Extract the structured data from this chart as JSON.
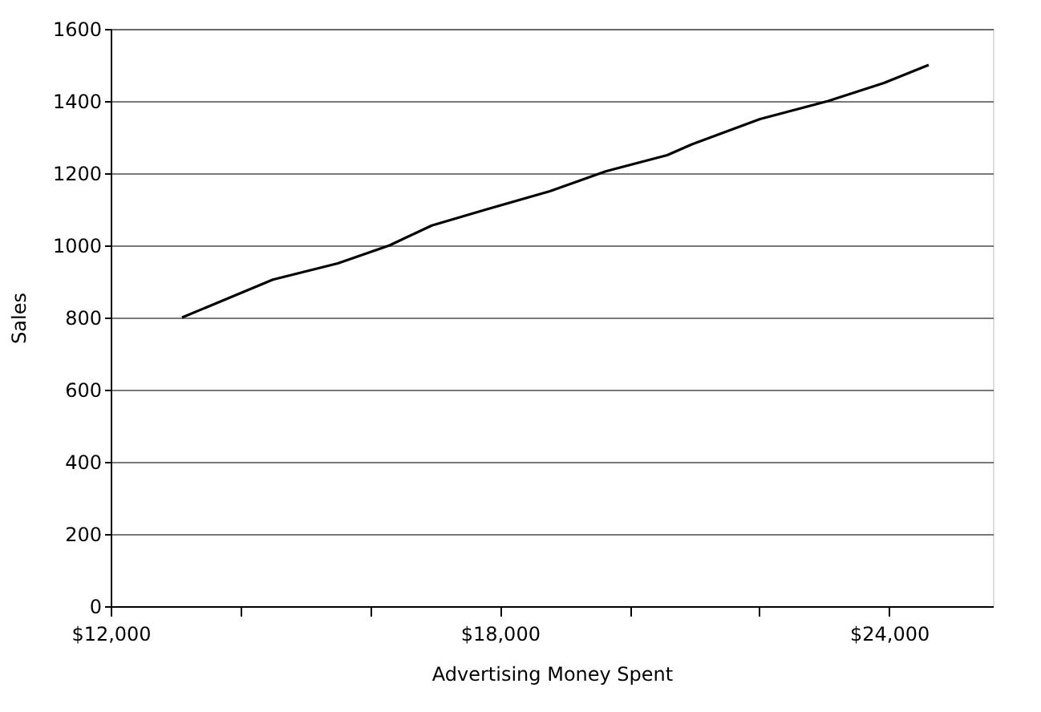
{
  "chart_data": {
    "type": "line",
    "xlabel": "Advertising Money Spent",
    "ylabel": "Sales",
    "x": [
      13100,
      14500,
      15500,
      16300,
      16950,
      17800,
      18770,
      19630,
      20580,
      20960,
      22010,
      23060,
      23920,
      24610
    ],
    "series": [
      {
        "color": "#000000",
        "values": [
          800,
          905,
          950,
          1000,
          1055,
          1100,
          1150,
          1205,
          1250,
          1280,
          1350,
          1400,
          1450,
          1500
        ]
      }
    ],
    "xlim": [
      12000,
      25600
    ],
    "xticks": [
      {
        "value": 12000,
        "label": "$12,000"
      },
      {
        "value": 14000,
        "label": null
      },
      {
        "value": 16000,
        "label": null
      },
      {
        "value": 18000,
        "label": "$18,000"
      },
      {
        "value": 20000,
        "label": null
      },
      {
        "value": 22000,
        "label": null
      },
      {
        "value": 24000,
        "label": "$24,000"
      }
    ],
    "ylim": [
      0,
      1600
    ],
    "yticks": [
      0,
      200,
      400,
      600,
      800,
      1000,
      1200,
      1400,
      1600
    ],
    "grid": "y",
    "marker": "none",
    "line_style": "solid"
  }
}
